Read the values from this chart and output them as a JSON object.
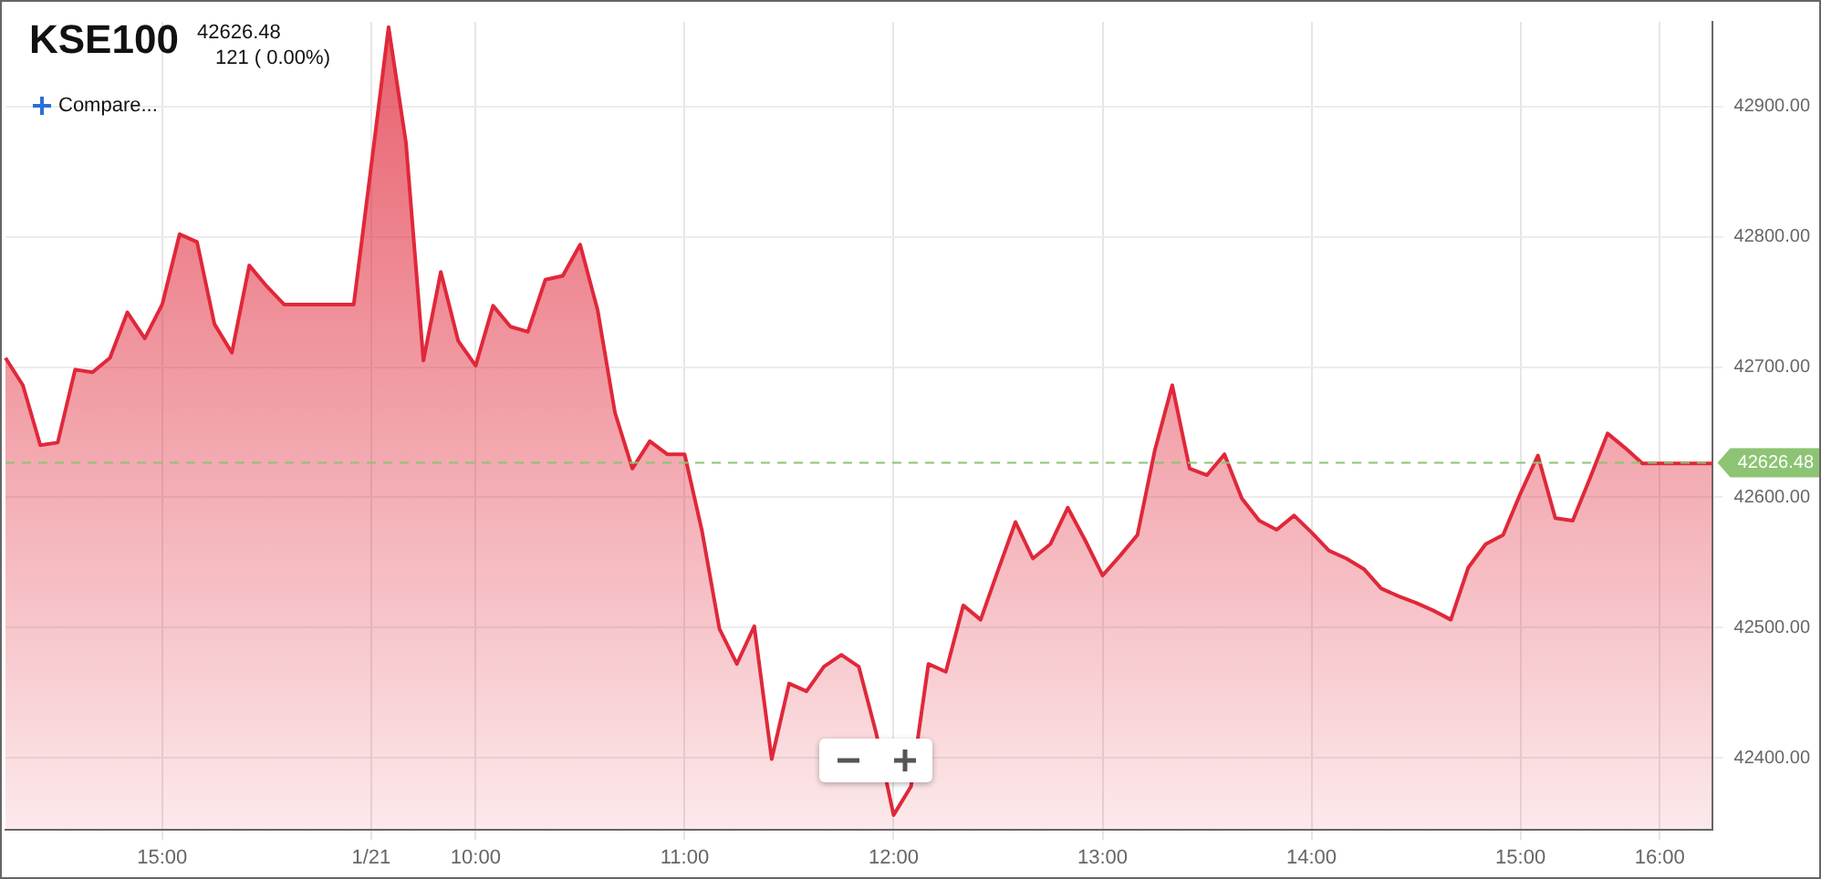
{
  "chart_data": {
    "type": "area",
    "title": "KSE100",
    "subtitle": "42626.48",
    "annotations": [
      "121 ( 0.00%)",
      "Compare..."
    ],
    "categories": [
      null,
      null,
      null,
      null,
      null,
      null,
      null,
      null,
      null,
      "15:00",
      null,
      null,
      null,
      null,
      null,
      null,
      null,
      null,
      null,
      null,
      null,
      "1/21",
      null,
      null,
      null,
      null,
      null,
      "10:00",
      null,
      null,
      null,
      null,
      null,
      null,
      null,
      null,
      null,
      null,
      null,
      "11:00",
      null,
      null,
      null,
      null,
      null,
      null,
      null,
      null,
      null,
      null,
      null,
      "12:00",
      null,
      null,
      null,
      null,
      null,
      null,
      null,
      null,
      null,
      null,
      null,
      "13:00",
      null,
      null,
      null,
      null,
      null,
      null,
      null,
      null,
      null,
      null,
      null,
      "14:00",
      null,
      null,
      null,
      null,
      null,
      null,
      null,
      null,
      null,
      null,
      null,
      "15:00",
      null,
      null,
      null,
      null,
      null,
      null,
      null,
      "16:00",
      null,
      null,
      null
    ],
    "series": [
      {
        "color": "#e0283a",
        "values": [
          42707,
          42686,
          42640,
          42642,
          42698,
          42696,
          42707,
          42742,
          42722,
          42748,
          42802,
          42796,
          42733,
          42711,
          42778,
          42762,
          42748,
          42748,
          42748,
          42748,
          42748,
          42854,
          42961,
          42872,
          42705,
          42773,
          42720,
          42701,
          42747,
          42731,
          42727,
          42767,
          42770,
          42794,
          42744,
          42665,
          42622,
          42643,
          42633,
          42633,
          42574,
          42499,
          42472,
          42501,
          42399,
          42457,
          42451,
          42470,
          42479,
          42470,
          42419,
          42356,
          42378,
          42472,
          42466,
          42517,
          42506,
          42544,
          42581,
          42553,
          42564,
          42592,
          42567,
          42540,
          42555,
          42571,
          42636,
          42686,
          42622,
          42617,
          42633,
          42599,
          42582,
          42575,
          42586,
          42573,
          42559,
          42553,
          42545,
          42530,
          42524,
          42519,
          42513,
          42506,
          42546,
          42564,
          42571,
          42603,
          42632,
          42584,
          42582,
          42615,
          42649,
          42638,
          42626,
          42626,
          42626,
          42626,
          42626
        ]
      }
    ],
    "ylim": [
      42345,
      42965
    ],
    "yticks": [
      {
        "value": 42400,
        "label": "42400.00"
      },
      {
        "value": 42500,
        "label": "42500.00"
      },
      {
        "value": 42600,
        "label": "42600.00"
      },
      {
        "value": 42700,
        "label": "42700.00"
      },
      {
        "value": 42800,
        "label": "42800.00"
      },
      {
        "value": 42900,
        "label": "42900.00"
      }
    ],
    "ref_lines": [
      {
        "axis": "y",
        "value": 42626.48,
        "label": "42626.48",
        "color": "#8cc474",
        "line_style": "dashed"
      }
    ],
    "grid": true,
    "legend": false,
    "marker": "none",
    "line_style": "solid"
  }
}
